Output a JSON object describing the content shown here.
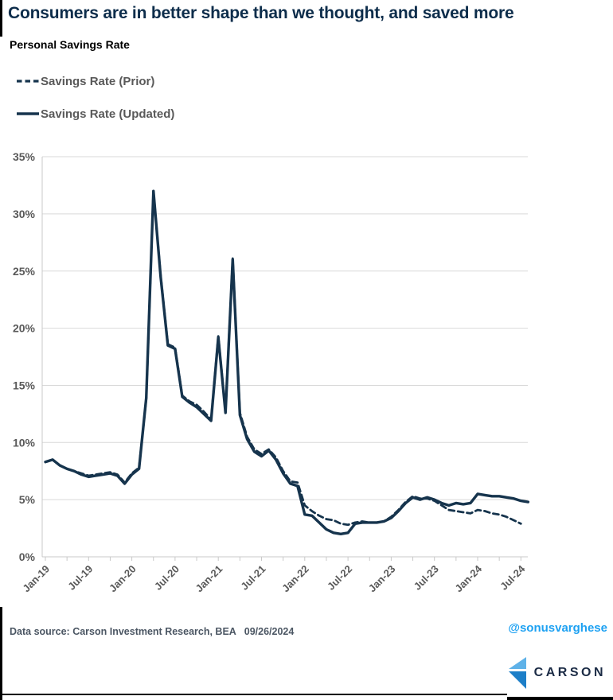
{
  "header": {
    "title": "Consumers are in better shape than we thought, and saved more",
    "subtitle": "Personal Savings Rate"
  },
  "legend": {
    "prior_label": "Savings Rate (Prior)",
    "updated_label": "Savings Rate (Updated)"
  },
  "footer": {
    "source": "Data source: Carson Investment Research, BEA   09/26/2024",
    "handle": "@sonusvarghese",
    "logo_text": "CARSON"
  },
  "colors": {
    "line_navy": "#16344d",
    "title_navy": "#0d2d4b",
    "axis_text_gray": "#595959",
    "grid_gray": "#d9d9d9",
    "axis_line_gray": "#c9c9c9",
    "handle_blue": "#1da1f2",
    "logo_light_blue": "#5fb2e8",
    "logo_dark_blue": "#1d7fc8",
    "logo_text_navy": "#1b2b45",
    "source_text_gray": "#4b5663"
  },
  "chart_data": {
    "type": "line",
    "title": "Personal Savings Rate",
    "ylabel": "",
    "xlabel": "",
    "ylim": [
      0,
      35
    ],
    "y_tick_labels": [
      "0%",
      "5%",
      "10%",
      "15%",
      "20%",
      "25%",
      "30%",
      "35%"
    ],
    "x_tick_labels": [
      "Jan-19",
      "Jul-19",
      "Jan-20",
      "Jul-20",
      "Jan-21",
      "Jul-21",
      "Jan-22",
      "Jul-22",
      "Jan-23",
      "Jul-23",
      "Jan-24",
      "Jul-24"
    ],
    "x_tick_month_step": 6,
    "grid": true,
    "legend_position": "top-left",
    "x": [
      "Jan-19",
      "Feb-19",
      "Mar-19",
      "Apr-19",
      "May-19",
      "Jun-19",
      "Jul-19",
      "Aug-19",
      "Sep-19",
      "Oct-19",
      "Nov-19",
      "Dec-19",
      "Jan-20",
      "Feb-20",
      "Mar-20",
      "Apr-20",
      "May-20",
      "Jun-20",
      "Jul-20",
      "Aug-20",
      "Sep-20",
      "Oct-20",
      "Nov-20",
      "Dec-20",
      "Jan-21",
      "Feb-21",
      "Mar-21",
      "Apr-21",
      "May-21",
      "Jun-21",
      "Jul-21",
      "Aug-21",
      "Sep-21",
      "Oct-21",
      "Nov-21",
      "Dec-21",
      "Jan-22",
      "Feb-22",
      "Mar-22",
      "Apr-22",
      "May-22",
      "Jun-22",
      "Jul-22",
      "Aug-22",
      "Sep-22",
      "Oct-22",
      "Nov-22",
      "Dec-22",
      "Jan-23",
      "Feb-23",
      "Mar-23",
      "Apr-23",
      "May-23",
      "Jun-23",
      "Jul-23",
      "Aug-23",
      "Sep-23",
      "Oct-23",
      "Nov-23",
      "Dec-23",
      "Jan-24",
      "Feb-24",
      "Mar-24",
      "Apr-24",
      "May-24",
      "Jun-24",
      "Jul-24",
      "Aug-24"
    ],
    "series": [
      {
        "name": "Savings Rate (Prior)",
        "style": "dashed",
        "values": [
          8.3,
          8.5,
          8.0,
          7.7,
          7.5,
          7.3,
          7.1,
          7.2,
          7.3,
          7.4,
          7.2,
          6.5,
          7.3,
          7.8,
          13.8,
          32.0,
          24.6,
          18.6,
          18.3,
          14.1,
          13.6,
          13.3,
          12.7,
          12.0,
          19.3,
          12.7,
          26.1,
          12.6,
          10.5,
          9.4,
          9.0,
          9.4,
          8.7,
          7.5,
          6.6,
          6.5,
          4.5,
          4.0,
          3.6,
          3.3,
          3.2,
          2.9,
          2.8,
          3.0,
          3.1,
          3.0,
          3.0,
          3.1,
          3.5,
          4.1,
          4.8,
          5.3,
          5.1,
          5.1,
          4.9,
          4.5,
          4.1,
          4.0,
          3.9,
          3.8,
          4.1,
          4.0,
          3.8,
          3.7,
          3.5,
          3.2,
          2.9
        ]
      },
      {
        "name": "Savings Rate (Updated)",
        "style": "solid",
        "values": [
          8.3,
          8.5,
          8.0,
          7.7,
          7.5,
          7.2,
          7.0,
          7.1,
          7.2,
          7.3,
          7.1,
          6.4,
          7.2,
          7.7,
          13.9,
          32.0,
          24.5,
          18.5,
          18.2,
          14.0,
          13.5,
          13.1,
          12.5,
          11.9,
          19.2,
          12.6,
          26.0,
          12.4,
          10.3,
          9.2,
          8.8,
          9.3,
          8.5,
          7.3,
          6.4,
          6.2,
          3.7,
          3.6,
          3.0,
          2.4,
          2.1,
          2.0,
          2.1,
          2.9,
          3.0,
          3.0,
          3.0,
          3.1,
          3.4,
          4.0,
          4.7,
          5.2,
          5.0,
          5.2,
          5.0,
          4.7,
          4.5,
          4.7,
          4.6,
          4.7,
          5.5,
          5.4,
          5.3,
          5.3,
          5.2,
          5.1,
          4.9,
          4.8
        ]
      }
    ]
  }
}
